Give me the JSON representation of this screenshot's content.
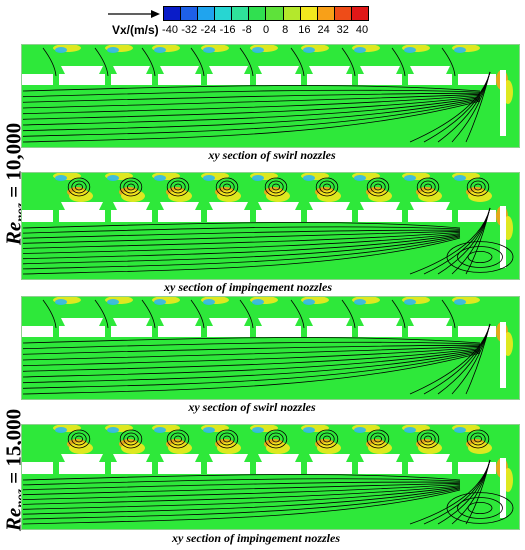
{
  "colorbar": {
    "title": "Vx/(m/s)",
    "ticks": [
      "-40",
      "-32",
      "-24",
      "-16",
      "-8",
      "0",
      "8",
      "16",
      "24",
      "32",
      "40"
    ],
    "colors": [
      "#0a1cc8",
      "#1e60e8",
      "#20a4ee",
      "#27d6d2",
      "#2fe29a",
      "#30e050",
      "#5ee23a",
      "#b4e82c",
      "#f2e81e",
      "#f8a018",
      "#ee4c18",
      "#e01818"
    ]
  },
  "labels": [
    {
      "sub": "noz",
      "value": "= 10,000"
    },
    {
      "sub": "noz",
      "value": "= 15,000"
    }
  ],
  "panels": [
    {
      "caption": "xy section of swirl nozzles",
      "type": "swirl"
    },
    {
      "caption": "xy section of impingement nozzles",
      "type": "impingement"
    },
    {
      "caption": "xy section of swirl nozzles",
      "type": "swirl"
    },
    {
      "caption": "xy section of impingement nozzles",
      "type": "impingement"
    }
  ]
}
